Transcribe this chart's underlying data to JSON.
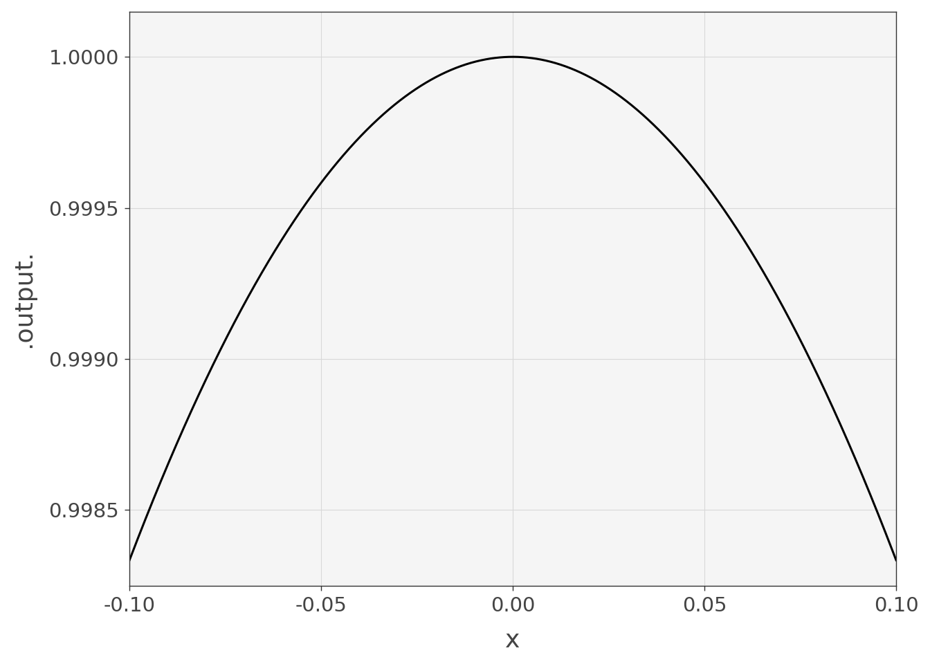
{
  "title": "",
  "xlabel": "x",
  "ylabel": ".output.",
  "x_min": -0.1,
  "x_max": 0.1,
  "x_ticks": [
    -0.1,
    -0.05,
    0.0,
    0.05,
    0.1
  ],
  "x_tick_labels": [
    "-0.10",
    "-0.05",
    "0.00",
    "0.05",
    "0.10"
  ],
  "y_ticks": [
    0.9985,
    0.999,
    0.9995,
    1.0
  ],
  "y_tick_labels": [
    "0.9985",
    "0.9990",
    "0.9995",
    "1.0000"
  ],
  "line_color": "#000000",
  "line_width": 2.2,
  "background_color": "#f5f5f5",
  "grid_color": "#d8d8d8",
  "n_points": 2000,
  "y_min": 0.99825,
  "y_max": 1.00015,
  "font_color": "#444444"
}
